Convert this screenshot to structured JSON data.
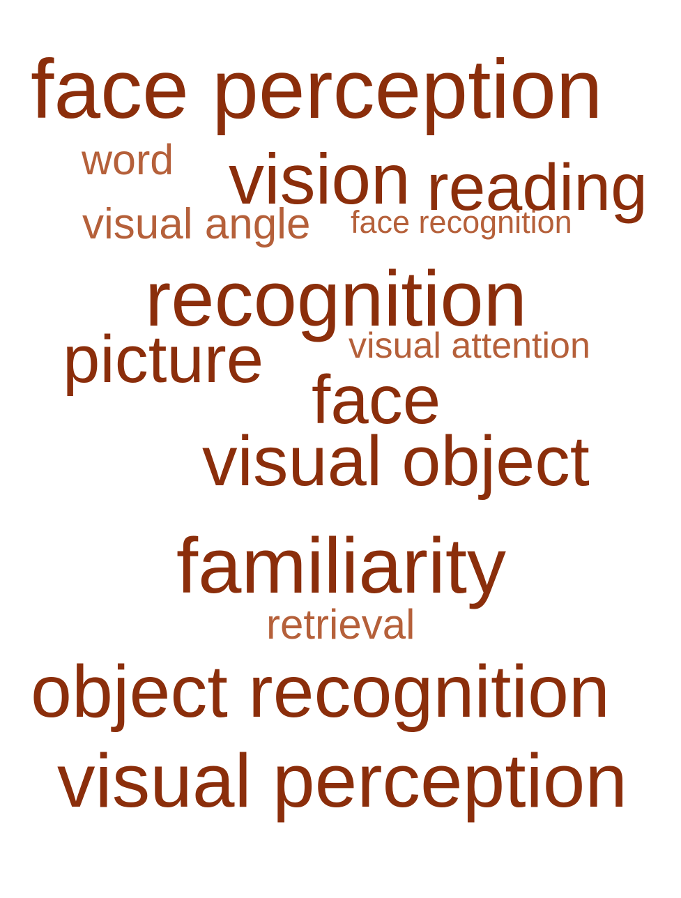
{
  "colors": {
    "strong": "#8b2e0b",
    "medium": "#a24a22",
    "light": "#b5603a"
  },
  "words": [
    {
      "text": "face perception",
      "weight": "strong"
    },
    {
      "text": "word",
      "weight": "light"
    },
    {
      "text": "vision",
      "weight": "strong"
    },
    {
      "text": "reading",
      "weight": "strong"
    },
    {
      "text": "visual angle",
      "weight": "light"
    },
    {
      "text": "face recognition",
      "weight": "light"
    },
    {
      "text": "recognition",
      "weight": "strong"
    },
    {
      "text": "picture",
      "weight": "strong"
    },
    {
      "text": "visual attention",
      "weight": "light"
    },
    {
      "text": "face",
      "weight": "strong"
    },
    {
      "text": "visual object",
      "weight": "strong"
    },
    {
      "text": "familiarity",
      "weight": "strong"
    },
    {
      "text": "retrieval",
      "weight": "light"
    },
    {
      "text": "object recognition",
      "weight": "strong"
    },
    {
      "text": "visual perception",
      "weight": "strong"
    }
  ]
}
